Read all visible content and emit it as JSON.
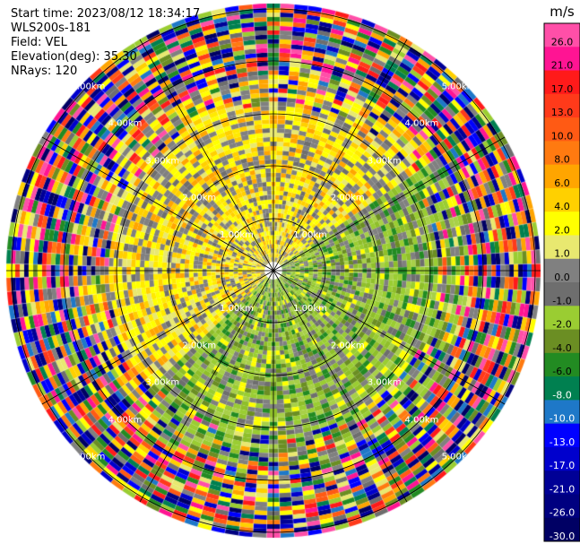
{
  "header": {
    "start_time": "Start time: 2023/08/12 18:34:17",
    "station": "WLS200s-181",
    "field": "Field: VEL",
    "elevation": "Elevation(deg): 35.30",
    "nrays": "NRays: 120"
  },
  "chart_data": {
    "type": "ppi",
    "field": "VEL",
    "nrays": 120,
    "elevation_deg": 35.3,
    "unit": "m/s",
    "ring_labels": [
      "1.00km",
      "2.00km",
      "3.00km",
      "4.00km",
      "5.00km"
    ],
    "colorbar": {
      "unit": "m/s",
      "ticks": [
        "26.0",
        "21.0",
        "17.0",
        "13.0",
        "10.0",
        "8.0",
        "6.0",
        "4.0",
        "2.0",
        "1.0",
        "0.0",
        "-1.0",
        "-2.0",
        "-4.0",
        "-6.0",
        "-8.0",
        "-10.0",
        "-13.0",
        "-17.0",
        "-21.0",
        "-26.0",
        "-30.0"
      ],
      "colors": [
        "#ff4fa8",
        "#ff1493",
        "#ff1a1a",
        "#ff3a1a",
        "#ff5a14",
        "#ff7a10",
        "#ffa500",
        "#ffd000",
        "#ffff00",
        "#e8e870",
        "#808080",
        "#6e6e6e",
        "#9acd32",
        "#6b8e23",
        "#228b22",
        "#008050",
        "#1e78c8",
        "#0000ff",
        "#0000cd",
        "#000096",
        "#000080",
        "#000064"
      ]
    },
    "regions": [
      {
        "sector": "north",
        "velocity_range_ms": [
          0,
          4
        ],
        "dominant_color": "yellow"
      },
      {
        "sector": "east",
        "velocity_range_ms": [
          -4,
          -1
        ],
        "dominant_color": "green"
      },
      {
        "sector": "south",
        "velocity_range_ms": [
          -4,
          -1
        ],
        "dominant_color": "green"
      },
      {
        "sector": "west",
        "velocity_range_ms": [
          0,
          4
        ],
        "dominant_color": "yellow"
      },
      {
        "sector": "outer ring",
        "velocity_range_ms": [
          -30,
          26
        ],
        "dominant_color": "noise"
      }
    ]
  }
}
